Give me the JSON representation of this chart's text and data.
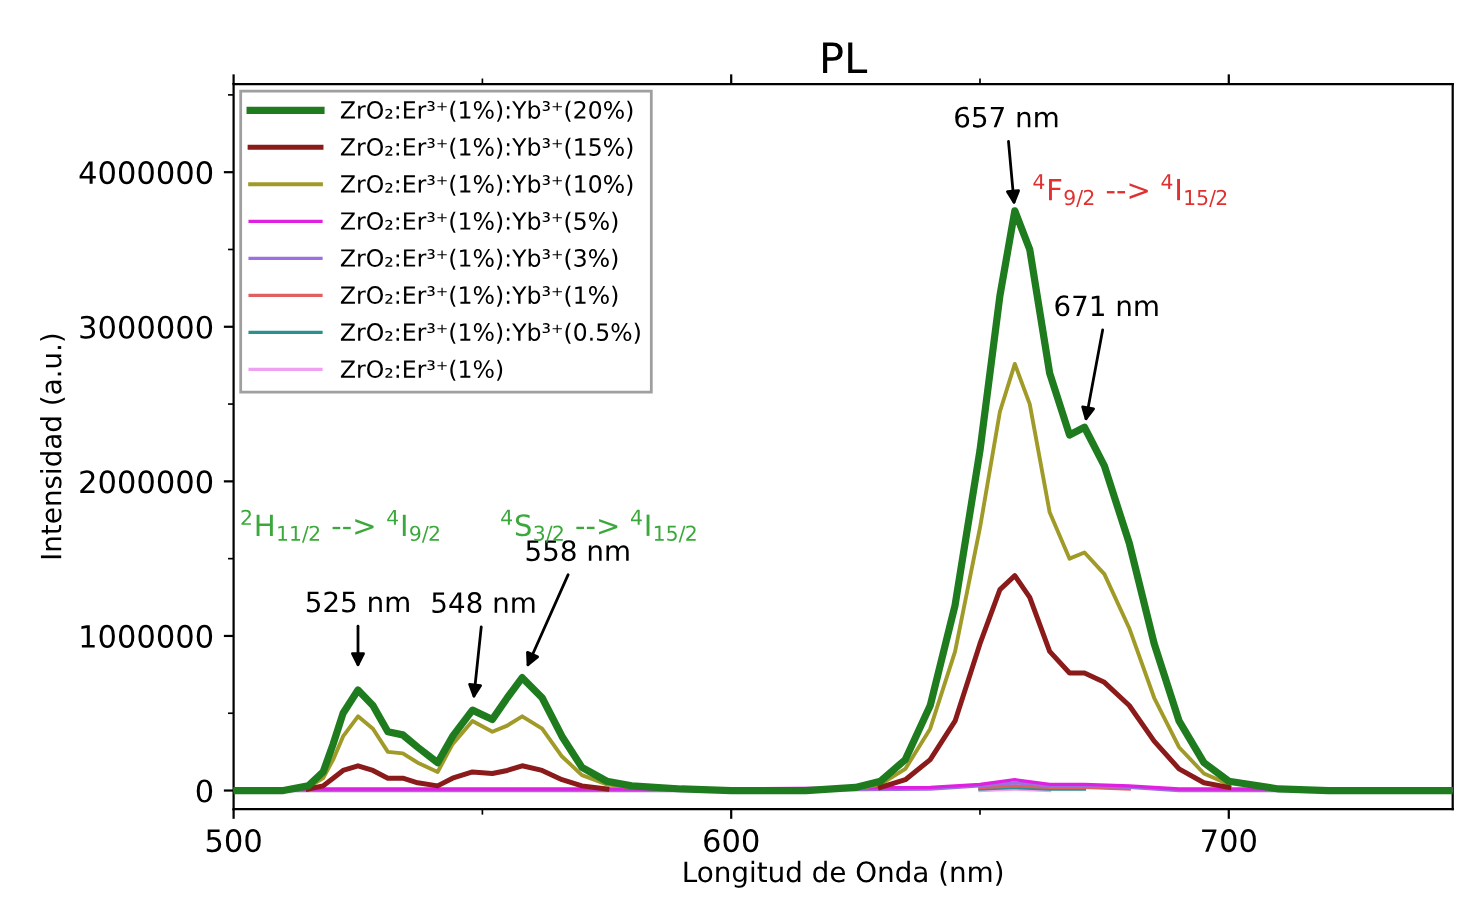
{
  "chart_data": {
    "type": "line",
    "title": "PL",
    "xlabel": "Longitud de Onda (nm)",
    "ylabel": "Intensidad (a.u.)",
    "xlim": [
      500,
      745
    ],
    "xticks": [
      500,
      600,
      700
    ],
    "ylim": [
      -120000,
      4570000
    ],
    "yticks": [
      0,
      1000000,
      2000000,
      3000000,
      4000000
    ],
    "grid": false,
    "legend": "top left",
    "marker": "none",
    "line_style": "solid",
    "x": [
      500,
      510,
      515,
      518,
      520,
      522,
      525,
      528,
      531,
      534,
      537,
      541,
      544,
      548,
      552,
      555,
      558,
      562,
      566,
      570,
      575,
      580,
      590,
      600,
      615,
      625,
      630,
      635,
      640,
      645,
      650,
      654,
      657,
      660,
      664,
      668,
      671,
      675,
      680,
      685,
      690,
      695,
      700,
      710,
      720,
      745
    ],
    "series": [
      {
        "name": "ZrO₂:Er³⁺(1%):Yb³⁺(20%)",
        "color": "#1e7b1e",
        "values": [
          0,
          0,
          30000,
          120000,
          300000,
          500000,
          650000,
          550000,
          380000,
          360000,
          280000,
          180000,
          350000,
          520000,
          460000,
          600000,
          730000,
          600000,
          350000,
          150000,
          60000,
          30000,
          10000,
          0,
          0,
          20000,
          60000,
          200000,
          550000,
          1200000,
          2200000,
          3200000,
          3750000,
          3500000,
          2700000,
          2300000,
          2350000,
          2100000,
          1600000,
          950000,
          450000,
          180000,
          60000,
          10000,
          0,
          0
        ]
      },
      {
        "name": "ZrO₂:Er³⁺(1%):Yb³⁺(15%)",
        "color": "#8b1a1a",
        "values": [
          null,
          null,
          10000,
          30000,
          80000,
          130000,
          160000,
          130000,
          80000,
          80000,
          50000,
          30000,
          80000,
          120000,
          110000,
          130000,
          160000,
          130000,
          70000,
          30000,
          10000,
          null,
          null,
          null,
          null,
          null,
          20000,
          70000,
          200000,
          450000,
          950000,
          1300000,
          1390000,
          1250000,
          900000,
          760000,
          760000,
          700000,
          550000,
          320000,
          140000,
          50000,
          20000,
          null,
          null,
          null
        ]
      },
      {
        "name": "ZrO₂:Er³⁺(1%):Yb³⁺(10%)",
        "color": "#a09a28",
        "values": [
          null,
          null,
          20000,
          80000,
          200000,
          350000,
          480000,
          400000,
          250000,
          240000,
          180000,
          120000,
          300000,
          450000,
          380000,
          420000,
          480000,
          400000,
          220000,
          100000,
          40000,
          20000,
          null,
          null,
          null,
          10000,
          40000,
          140000,
          400000,
          900000,
          1700000,
          2450000,
          2760000,
          2500000,
          1800000,
          1500000,
          1540000,
          1400000,
          1050000,
          600000,
          280000,
          110000,
          40000,
          null,
          null,
          null
        ]
      },
      {
        "name": "ZrO₂:Er³⁺(1%):Yb³⁺(5%)",
        "color": "#e020e0",
        "x": [
          500,
          600,
          640,
          650,
          657,
          664,
          671,
          680,
          690,
          745
        ],
        "values": [
          10000,
          10000,
          20000,
          40000,
          70000,
          40000,
          40000,
          30000,
          10000,
          10000
        ]
      },
      {
        "name": "ZrO₂:Er³⁺(1%):Yb³⁺(3%)",
        "color": "#9b70e0",
        "x": [
          500,
          600,
          640,
          650,
          657,
          664,
          671,
          680,
          690,
          745
        ],
        "values": [
          0,
          0,
          10000,
          30000,
          50000,
          30000,
          30000,
          20000,
          0,
          0
        ]
      },
      {
        "name": "ZrO₂:Er³⁺(1%):Yb³⁺(1%)",
        "color": "#e06060",
        "x": [
          650,
          657,
          664,
          671,
          680
        ],
        "values": [
          20000,
          30000,
          20000,
          20000,
          10000
        ]
      },
      {
        "name": "ZrO₂:Er³⁺(1%):Yb³⁺(0.5%)",
        "color": "#2a9090",
        "x": [
          650,
          657,
          664,
          671
        ],
        "values": [
          10000,
          20000,
          10000,
          10000
        ]
      },
      {
        "name": "ZrO₂:Er³⁺(1%)",
        "color": "#f0a0f0",
        "x": [
          650,
          657,
          664
        ],
        "values": [
          0,
          10000,
          0
        ]
      }
    ],
    "annotations": [
      {
        "text": "525 nm",
        "x": 525,
        "y": 650000
      },
      {
        "text": "548 nm",
        "x": 548,
        "y": 520000
      },
      {
        "text": "558 nm",
        "x": 558,
        "y": 730000
      },
      {
        "text": "657 nm",
        "x": 657,
        "y": 3750000
      },
      {
        "text": "671 nm",
        "x": 671,
        "y": 2350000
      },
      "$^{2}$H$_{11/2}$ --> $^{4}$I$_{9/2}$",
      "$^{4}$S$_{3/2}$ --> $^{4}$I$_{15/2}$",
      "$^{4}$F$_{9/2}$ --> $^{4}$I$_{15/2}$"
    ]
  }
}
